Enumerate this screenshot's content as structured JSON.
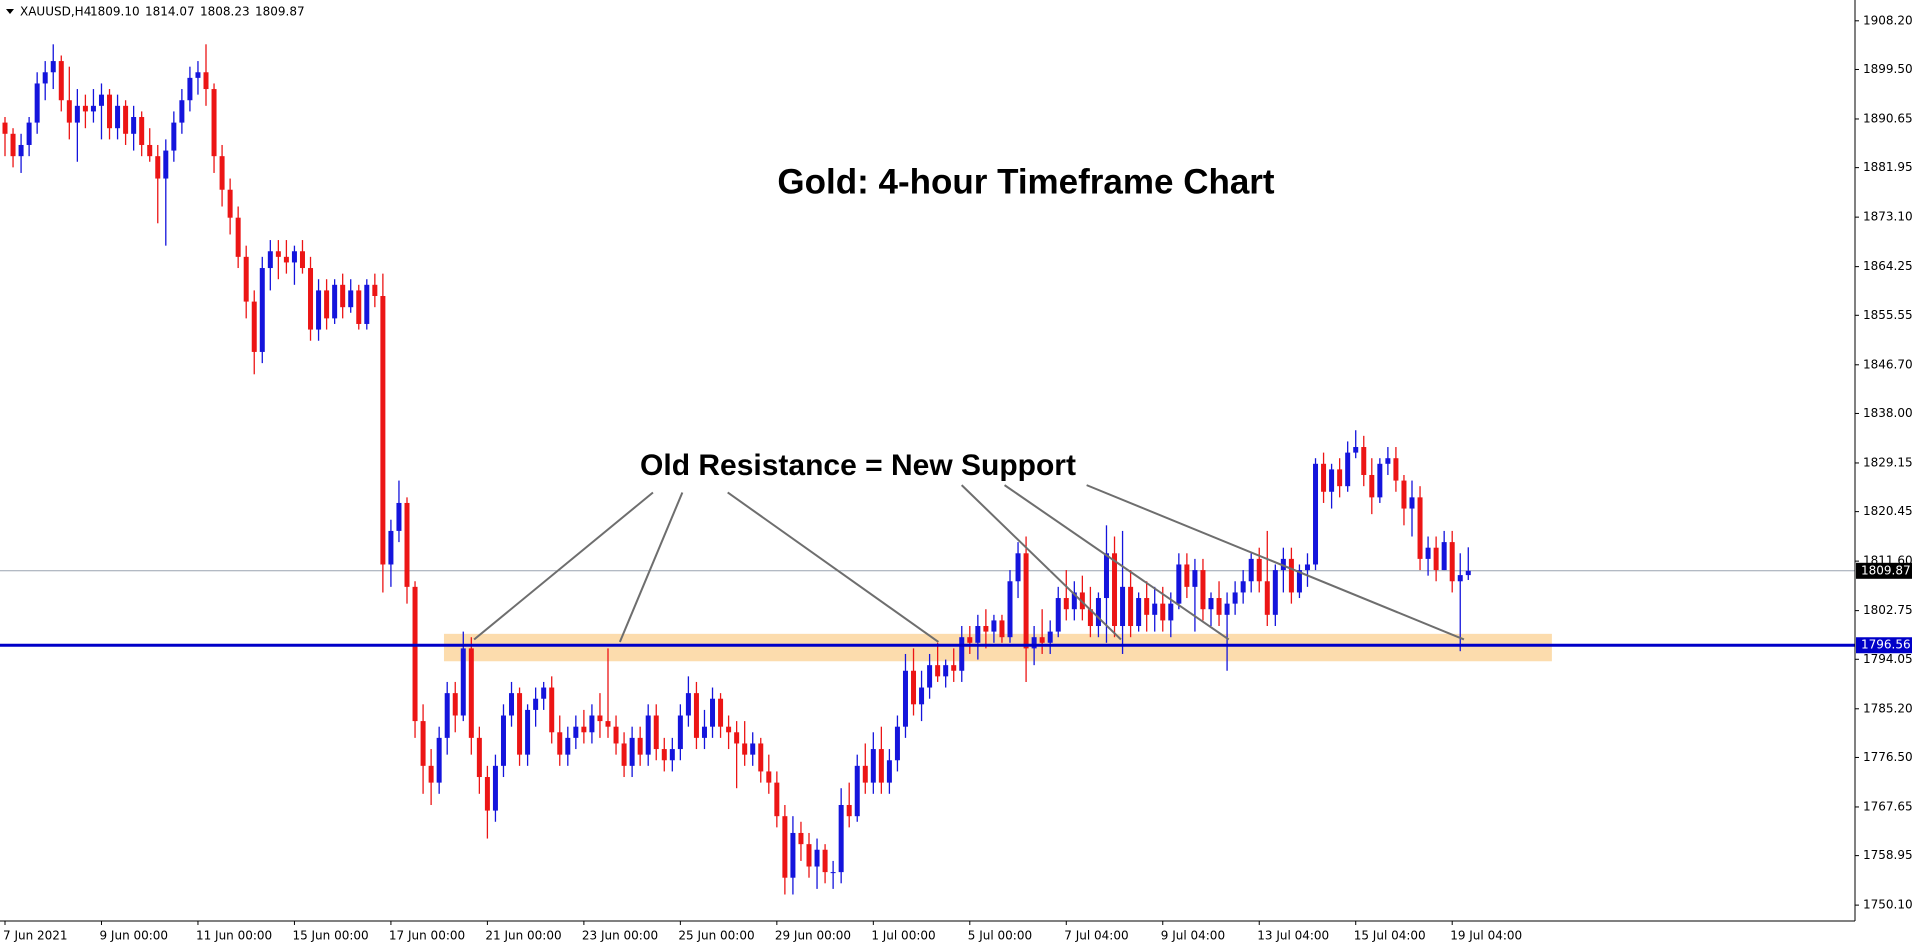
{
  "chart_data": {
    "type": "candlestick",
    "title": "Gold: 4-hour Timeframe Chart",
    "annotation": "Old Resistance = New Support",
    "header": {
      "symbol": "XAUUSD,H4",
      "values": [
        1809.1,
        1814.07,
        1808.23,
        1809.87
      ],
      "value_labels": [
        "1809.10",
        "1814.07",
        "1808.23",
        "1809.87"
      ]
    },
    "up_color": "#1414dc",
    "down_color": "#ec1515",
    "ylim": [
      1747.26,
      1911.92
    ],
    "yticks": [
      {
        "value": 1908.2,
        "label": "1908.20"
      },
      {
        "value": 1899.5,
        "label": "1899.50"
      },
      1890.65,
      1881.95,
      {
        "value": 1873.1,
        "label": "1873.10"
      },
      1864.25,
      1855.55,
      {
        "value": 1846.7,
        "label": "1846.70"
      },
      {
        "value": 1838,
        "label": "1838.00"
      },
      1829.15,
      1820.45,
      {
        "value": 1811.6,
        "label": "1811.60"
      },
      1802.75,
      1794.05,
      {
        "value": 1785.2,
        "label": "1785.20"
      },
      {
        "value": 1776.5,
        "label": "1776.50"
      },
      1767.65,
      1758.95,
      {
        "value": 1750.1,
        "label": "1750.10"
      }
    ],
    "support_level": 1796.56,
    "support_color": "#0000c8",
    "zone": [
      1793.7,
      1798.6
    ],
    "zone_color": "#fcd8a4",
    "categories": [
      "7 Jun 2021",
      null,
      null,
      null,
      null,
      null,
      null,
      null,
      null,
      null,
      null,
      null,
      "9 Jun 00:00",
      null,
      null,
      null,
      null,
      null,
      null,
      null,
      null,
      null,
      null,
      null,
      "11 Jun 00:00",
      null,
      null,
      null,
      null,
      null,
      null,
      null,
      null,
      null,
      null,
      null,
      "15 Jun 00:00",
      null,
      null,
      null,
      null,
      null,
      null,
      null,
      null,
      null,
      null,
      null,
      "17 Jun 00:00",
      null,
      null,
      null,
      null,
      null,
      null,
      null,
      null,
      null,
      null,
      null,
      "21 Jun 00:00",
      null,
      null,
      null,
      null,
      null,
      null,
      null,
      null,
      null,
      null,
      null,
      "23 Jun 00:00",
      null,
      null,
      null,
      null,
      null,
      null,
      null,
      null,
      null,
      null,
      null,
      "25 Jun 00:00",
      null,
      null,
      null,
      null,
      null,
      null,
      null,
      null,
      null,
      null,
      null,
      "29 Jun 00:00",
      null,
      null,
      null,
      null,
      null,
      null,
      null,
      null,
      null,
      null,
      null,
      "1 Jul 00:00",
      null,
      null,
      null,
      null,
      null,
      null,
      null,
      null,
      null,
      null,
      null,
      "5 Jul 00:00",
      null,
      null,
      null,
      null,
      null,
      null,
      null,
      null,
      null,
      null,
      null,
      "7 Jul 04:00",
      null,
      null,
      null,
      null,
      null,
      null,
      null,
      null,
      null,
      null,
      null,
      "9 Jul 04:00",
      null,
      null,
      null,
      null,
      null,
      null,
      null,
      null,
      null,
      null,
      null,
      "13 Jul 04:00",
      null,
      null,
      null,
      null,
      null,
      null,
      null,
      null,
      null,
      null,
      null,
      "15 Jul 04:00",
      null,
      null,
      null,
      null,
      null,
      null,
      null,
      null,
      null,
      null,
      null,
      "19 Jul 04:00",
      null,
      null
    ],
    "ohlc": [
      [
        1890,
        1891,
        1884,
        1888
      ],
      [
        1888,
        1889,
        1882,
        1884
      ],
      [
        1884,
        1888,
        1881,
        1886
      ],
      [
        1886,
        1891,
        1884,
        1890
      ],
      [
        1890,
        1899,
        1888,
        1897
      ],
      [
        1897,
        1901,
        1894,
        1899
      ],
      [
        1899,
        1904,
        1896,
        1901
      ],
      [
        1901,
        1902,
        1892,
        1894
      ],
      [
        1894,
        1900,
        1887,
        1890
      ],
      [
        1890,
        1896,
        1883,
        1893
      ],
      [
        1893,
        1895,
        1889,
        1892
      ],
      [
        1892,
        1896,
        1890,
        1893
      ],
      [
        1893,
        1897,
        1887,
        1895
      ],
      [
        1895,
        1896,
        1887,
        1889
      ],
      [
        1889,
        1895,
        1887,
        1893
      ],
      [
        1893,
        1894,
        1886,
        1888
      ],
      [
        1888,
        1893,
        1885,
        1891
      ],
      [
        1891,
        1892,
        1884,
        1886
      ],
      [
        1886,
        1889,
        1883,
        1884
      ],
      [
        1884,
        1886,
        1872,
        1880
      ],
      [
        1880,
        1887,
        1868,
        1885
      ],
      [
        1885,
        1892,
        1883,
        1890
      ],
      [
        1890,
        1896,
        1888,
        1894
      ],
      [
        1894,
        1900,
        1892,
        1898
      ],
      [
        1898,
        1901,
        1895,
        1899
      ],
      [
        1899,
        1904,
        1893,
        1896
      ],
      [
        1896,
        1897,
        1881,
        1884
      ],
      [
        1884,
        1886,
        1875,
        1878
      ],
      [
        1878,
        1880,
        1870,
        1873
      ],
      [
        1873,
        1875,
        1864,
        1866
      ],
      [
        1866,
        1868,
        1855,
        1858
      ],
      [
        1858,
        1860,
        1845,
        1849
      ],
      [
        1849,
        1866,
        1847,
        1864
      ],
      [
        1864,
        1869,
        1860,
        1867
      ],
      [
        1867,
        1869,
        1862,
        1866
      ],
      [
        1866,
        1869,
        1863,
        1865
      ],
      [
        1865,
        1868,
        1861,
        1867
      ],
      [
        1867,
        1869,
        1863,
        1864
      ],
      [
        1864,
        1866,
        1851,
        1853
      ],
      [
        1853,
        1862,
        1851,
        1860
      ],
      [
        1860,
        1862,
        1853,
        1855
      ],
      [
        1855,
        1862,
        1854,
        1861
      ],
      [
        1861,
        1863,
        1855,
        1857
      ],
      [
        1857,
        1862,
        1856,
        1860
      ],
      [
        1860,
        1861,
        1853,
        1854
      ],
      [
        1854,
        1862,
        1853,
        1861
      ],
      [
        1861,
        1863,
        1857,
        1859
      ],
      [
        1859,
        1863,
        1806,
        1811
      ],
      [
        1811,
        1819,
        1807,
        1817
      ],
      [
        1817,
        1826,
        1815,
        1822
      ],
      [
        1822,
        1823,
        1804,
        1807
      ],
      [
        1807,
        1808,
        1780,
        1783
      ],
      [
        1783,
        1786,
        1770,
        1775
      ],
      [
        1775,
        1778,
        1768,
        1772
      ],
      [
        1772,
        1782,
        1770,
        1780
      ],
      [
        1780,
        1790,
        1777,
        1788
      ],
      [
        1788,
        1790,
        1781,
        1784
      ],
      [
        1784,
        1799,
        1783,
        1796
      ],
      [
        1796,
        1798,
        1777,
        1780
      ],
      [
        1780,
        1782,
        1770,
        1773
      ],
      [
        1773,
        1775,
        1762,
        1767
      ],
      [
        1767,
        1777,
        1765,
        1775
      ],
      [
        1775,
        1786,
        1773,
        1784
      ],
      [
        1784,
        1790,
        1782,
        1788
      ],
      [
        1788,
        1789,
        1775,
        1777
      ],
      [
        1777,
        1786,
        1775,
        1785
      ],
      [
        1785,
        1789,
        1782,
        1787
      ],
      [
        1787,
        1790,
        1785,
        1789
      ],
      [
        1789,
        1791,
        1779,
        1781
      ],
      [
        1781,
        1784,
        1775,
        1777
      ],
      [
        1777,
        1782,
        1775,
        1780
      ],
      [
        1780,
        1784,
        1778,
        1782
      ],
      [
        1782,
        1785,
        1779,
        1781
      ],
      [
        1781,
        1786,
        1779,
        1784
      ],
      [
        1784,
        1788,
        1780,
        1783
      ],
      [
        1783,
        1796,
        1780,
        1782
      ],
      [
        1782,
        1784,
        1777,
        1779
      ],
      [
        1779,
        1781,
        1773,
        1775
      ],
      [
        1775,
        1782,
        1773,
        1780
      ],
      [
        1780,
        1782,
        1775,
        1777
      ],
      [
        1777,
        1786,
        1775,
        1784
      ],
      [
        1784,
        1786,
        1776,
        1778
      ],
      [
        1778,
        1780,
        1774,
        1776
      ],
      [
        1776,
        1780,
        1774,
        1778
      ],
      [
        1778,
        1786,
        1776,
        1784
      ],
      [
        1784,
        1791,
        1782,
        1788
      ],
      [
        1788,
        1790,
        1778,
        1780
      ],
      [
        1780,
        1785,
        1778,
        1782
      ],
      [
        1782,
        1789,
        1780,
        1787
      ],
      [
        1787,
        1788,
        1780,
        1782
      ],
      [
        1782,
        1784,
        1778,
        1781
      ],
      [
        1781,
        1783,
        1771,
        1779
      ],
      [
        1779,
        1783,
        1775,
        1777
      ],
      [
        1777,
        1781,
        1775,
        1779
      ],
      [
        1779,
        1780,
        1772,
        1774
      ],
      [
        1774,
        1777,
        1770,
        1772
      ],
      [
        1772,
        1774,
        1764,
        1766
      ],
      [
        1766,
        1768,
        1752,
        1755
      ],
      [
        1755,
        1766,
        1752,
        1763
      ],
      [
        1763,
        1765,
        1758,
        1761
      ],
      [
        1761,
        1763,
        1755,
        1757
      ],
      [
        1757,
        1762,
        1753,
        1760
      ],
      [
        1760,
        1761,
        1754,
        1756
      ],
      [
        1756,
        1758,
        1753,
        1756
      ],
      [
        1756,
        1771,
        1754,
        1768
      ],
      [
        1768,
        1772,
        1764,
        1766
      ],
      [
        1766,
        1777,
        1765,
        1775
      ],
      [
        1775,
        1779,
        1770,
        1772
      ],
      [
        1772,
        1781,
        1770,
        1778
      ],
      [
        1778,
        1782,
        1770,
        1772
      ],
      [
        1772,
        1778,
        1770,
        1776
      ],
      [
        1776,
        1784,
        1774,
        1782
      ],
      [
        1782,
        1795,
        1780,
        1792
      ],
      [
        1792,
        1796,
        1784,
        1786
      ],
      [
        1786,
        1792,
        1783,
        1789
      ],
      [
        1789,
        1795,
        1787,
        1793
      ],
      [
        1793,
        1797,
        1790,
        1791
      ],
      [
        1791,
        1794,
        1789,
        1793
      ],
      [
        1793,
        1796,
        1790,
        1792
      ],
      [
        1792,
        1800,
        1790,
        1798
      ],
      [
        1798,
        1800,
        1795,
        1797
      ],
      [
        1797,
        1802,
        1794,
        1800
      ],
      [
        1800,
        1803,
        1796,
        1799
      ],
      [
        1799,
        1802,
        1797,
        1801
      ],
      [
        1801,
        1802,
        1797,
        1798
      ],
      [
        1798,
        1810,
        1797,
        1808
      ],
      [
        1808,
        1815,
        1805,
        1813
      ],
      [
        1813,
        1816,
        1790,
        1796
      ],
      [
        1796,
        1800,
        1793,
        1798
      ],
      [
        1798,
        1803,
        1795,
        1797
      ],
      [
        1797,
        1801,
        1795,
        1799
      ],
      [
        1799,
        1807,
        1798,
        1805
      ],
      [
        1805,
        1810,
        1801,
        1803
      ],
      [
        1803,
        1808,
        1801,
        1806
      ],
      [
        1806,
        1809,
        1801,
        1803
      ],
      [
        1803,
        1807,
        1798,
        1800
      ],
      [
        1800,
        1806,
        1798,
        1805
      ],
      [
        1805,
        1818,
        1797,
        1813
      ],
      [
        1813,
        1816,
        1798,
        1800
      ],
      [
        1800,
        1817,
        1795,
        1807
      ],
      [
        1807,
        1810,
        1798,
        1800
      ],
      [
        1800,
        1806,
        1799,
        1805
      ],
      [
        1805,
        1808,
        1799,
        1802
      ],
      [
        1802,
        1807,
        1799,
        1804
      ],
      [
        1804,
        1807,
        1799,
        1801
      ],
      [
        1801,
        1806,
        1798,
        1804
      ],
      [
        1804,
        1813,
        1803,
        1811
      ],
      [
        1811,
        1813,
        1805,
        1807
      ],
      [
        1807,
        1812,
        1799,
        1810
      ],
      [
        1810,
        1812,
        1801,
        1803
      ],
      [
        1803,
        1806,
        1800,
        1805
      ],
      [
        1805,
        1808,
        1800,
        1802
      ],
      [
        1802,
        1806,
        1792,
        1804
      ],
      [
        1804,
        1808,
        1802,
        1806
      ],
      [
        1806,
        1810,
        1804,
        1808
      ],
      [
        1808,
        1813,
        1806,
        1812
      ],
      [
        1812,
        1814,
        1806,
        1808
      ],
      [
        1808,
        1817,
        1800,
        1802
      ],
      [
        1802,
        1811,
        1800,
        1810
      ],
      [
        1810,
        1814,
        1806,
        1812
      ],
      [
        1812,
        1814,
        1804,
        1806
      ],
      [
        1806,
        1811,
        1805,
        1810
      ],
      [
        1810,
        1813,
        1807,
        1811
      ],
      [
        1811,
        1830,
        1810,
        1829
      ],
      [
        1829,
        1831,
        1822,
        1824
      ],
      [
        1824,
        1829,
        1821,
        1828
      ],
      [
        1828,
        1830,
        1823,
        1825
      ],
      [
        1825,
        1833,
        1824,
        1831
      ],
      [
        1831,
        1835,
        1830,
        1832
      ],
      [
        1832,
        1834,
        1825,
        1827
      ],
      [
        1827,
        1830,
        1820,
        1823
      ],
      [
        1823,
        1830,
        1822,
        1829
      ],
      [
        1829,
        1832,
        1827,
        1830
      ],
      [
        1830,
        1832,
        1824,
        1826
      ],
      [
        1826,
        1827,
        1818,
        1821
      ],
      [
        1821,
        1826,
        1816,
        1823
      ],
      [
        1823,
        1825,
        1810,
        1812
      ],
      [
        1812,
        1816,
        1809,
        1814
      ],
      [
        1814,
        1816,
        1808,
        1810
      ],
      [
        1810,
        1817,
        1810,
        1815
      ],
      [
        1815,
        1817,
        1806,
        1808
      ],
      [
        1808,
        1813,
        1795.5,
        1809.1
      ],
      [
        1809.1,
        1814.07,
        1808.23,
        1809.87
      ]
    ]
  }
}
